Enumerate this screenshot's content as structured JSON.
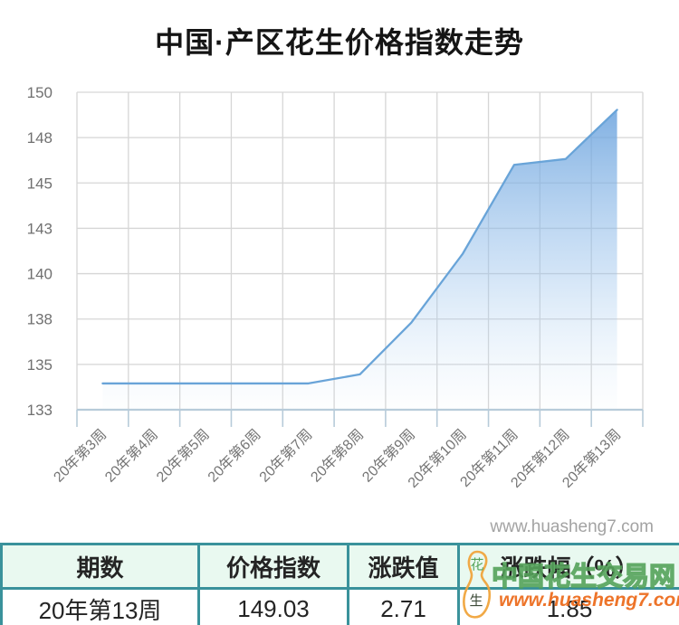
{
  "title": "中国·产区花生价格指数走势",
  "chart_watermark": "www.huasheng7.com",
  "chart_data": {
    "type": "area",
    "title": "中国·产区花生价格指数走势",
    "categories": [
      "20年第3周",
      "20年第4周",
      "20年第5周",
      "20年第6周",
      "20年第7周",
      "20年第8周",
      "20年第9周",
      "20年第10周",
      "20年第11周",
      "20年第12周",
      "20年第13周"
    ],
    "values": [
      133.95,
      133.95,
      133.95,
      133.95,
      133.95,
      134.45,
      137.3,
      141.1,
      146.0,
      146.32,
      149.03
    ],
    "y_tick_labels": [
      "150",
      "148",
      "145",
      "143",
      "140",
      "138",
      "135",
      "133"
    ],
    "ylim": [
      132.5,
      150
    ],
    "grid": true,
    "legend": "none",
    "xlabel": "",
    "ylabel": "",
    "line_color": "#69a4d8",
    "area_top_color": "rgba(103,160,220,0.9)",
    "area_mid_color": "rgba(150,192,235,0.45)",
    "area_bottom_color": "rgba(200,225,245,0.03)",
    "grid_color": "#d6d6d6",
    "axis_color": "#b7cbd9",
    "tick_label_color": "#707070"
  },
  "table": {
    "headers": [
      "期数",
      "价格指数",
      "涨跌值",
      "涨跌幅（%）"
    ],
    "row": [
      "20年第13周",
      "149.03",
      "2.71",
      "1.85"
    ]
  },
  "watermark": {
    "site_name": "中国花生交易网",
    "site_url": "www.huasheng7.com",
    "logo_chars": [
      "花",
      "生"
    ]
  },
  "colors": {
    "table_border": "#3a929b",
    "table_header_bg": "#e9f9f0",
    "watermark_green": "#55a35b",
    "watermark_orange": "#ed6d1f"
  }
}
